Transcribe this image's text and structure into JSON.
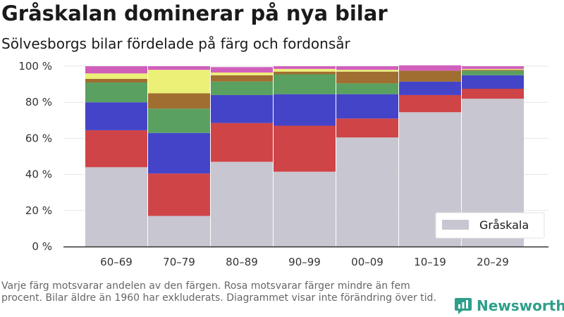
{
  "title": "Gråskalan dominerar på nya bilar",
  "subtitle": "Sölvesborgs bilar fördelade på färg och fordonsår",
  "footnote": "Varje färg motsvarar andelen av den färgen. Rosa motsvarar färger mindre än fem procent. Bilar äldre än 1960 har exkluderats. Diagrammet visar inte förändring över tid.",
  "brand": {
    "name": "Newsworthy",
    "icon": "newsworthy-logo-icon",
    "color": "#2e9f8a"
  },
  "chart_data": {
    "type": "bar",
    "stacked": true,
    "categories": [
      "60–69",
      "70–79",
      "80–89",
      "90–99",
      "00–09",
      "10–19",
      "20–29"
    ],
    "y_ticks": [
      "0 %",
      "20 %",
      "40 %",
      "60 %",
      "80 %",
      "100 %"
    ],
    "ylim": [
      0,
      100
    ],
    "grid": true,
    "legend": {
      "position": "bottom-right",
      "entries": [
        "Gråskala"
      ]
    },
    "series": [
      {
        "name": "Gråskala",
        "color": "#c8c6d0",
        "values": [
          44,
          17,
          47,
          41.5,
          60.5,
          74.5,
          82
        ]
      },
      {
        "color": "#cf4446",
        "values": [
          20.5,
          23.5,
          21.5,
          25.5,
          10.5,
          9.5,
          5.5
        ]
      },
      {
        "color": "#4444c8",
        "values": [
          15.5,
          22.5,
          15.5,
          17.5,
          13.5,
          7.5,
          7.5
        ]
      },
      {
        "color": "#5aa060",
        "values": [
          11,
          13.5,
          7.5,
          11,
          6,
          0,
          2.5
        ]
      },
      {
        "color": "#a06e30",
        "values": [
          2,
          8.5,
          3.5,
          1.5,
          6.5,
          6,
          0.5
        ]
      },
      {
        "color": "#ecf077",
        "values": [
          3,
          13,
          1.5,
          1.5,
          1,
          0,
          0.5
        ]
      },
      {
        "color": "#d05fbc",
        "values": [
          4,
          2,
          3,
          1.5,
          2,
          3,
          1.5
        ]
      }
    ]
  }
}
